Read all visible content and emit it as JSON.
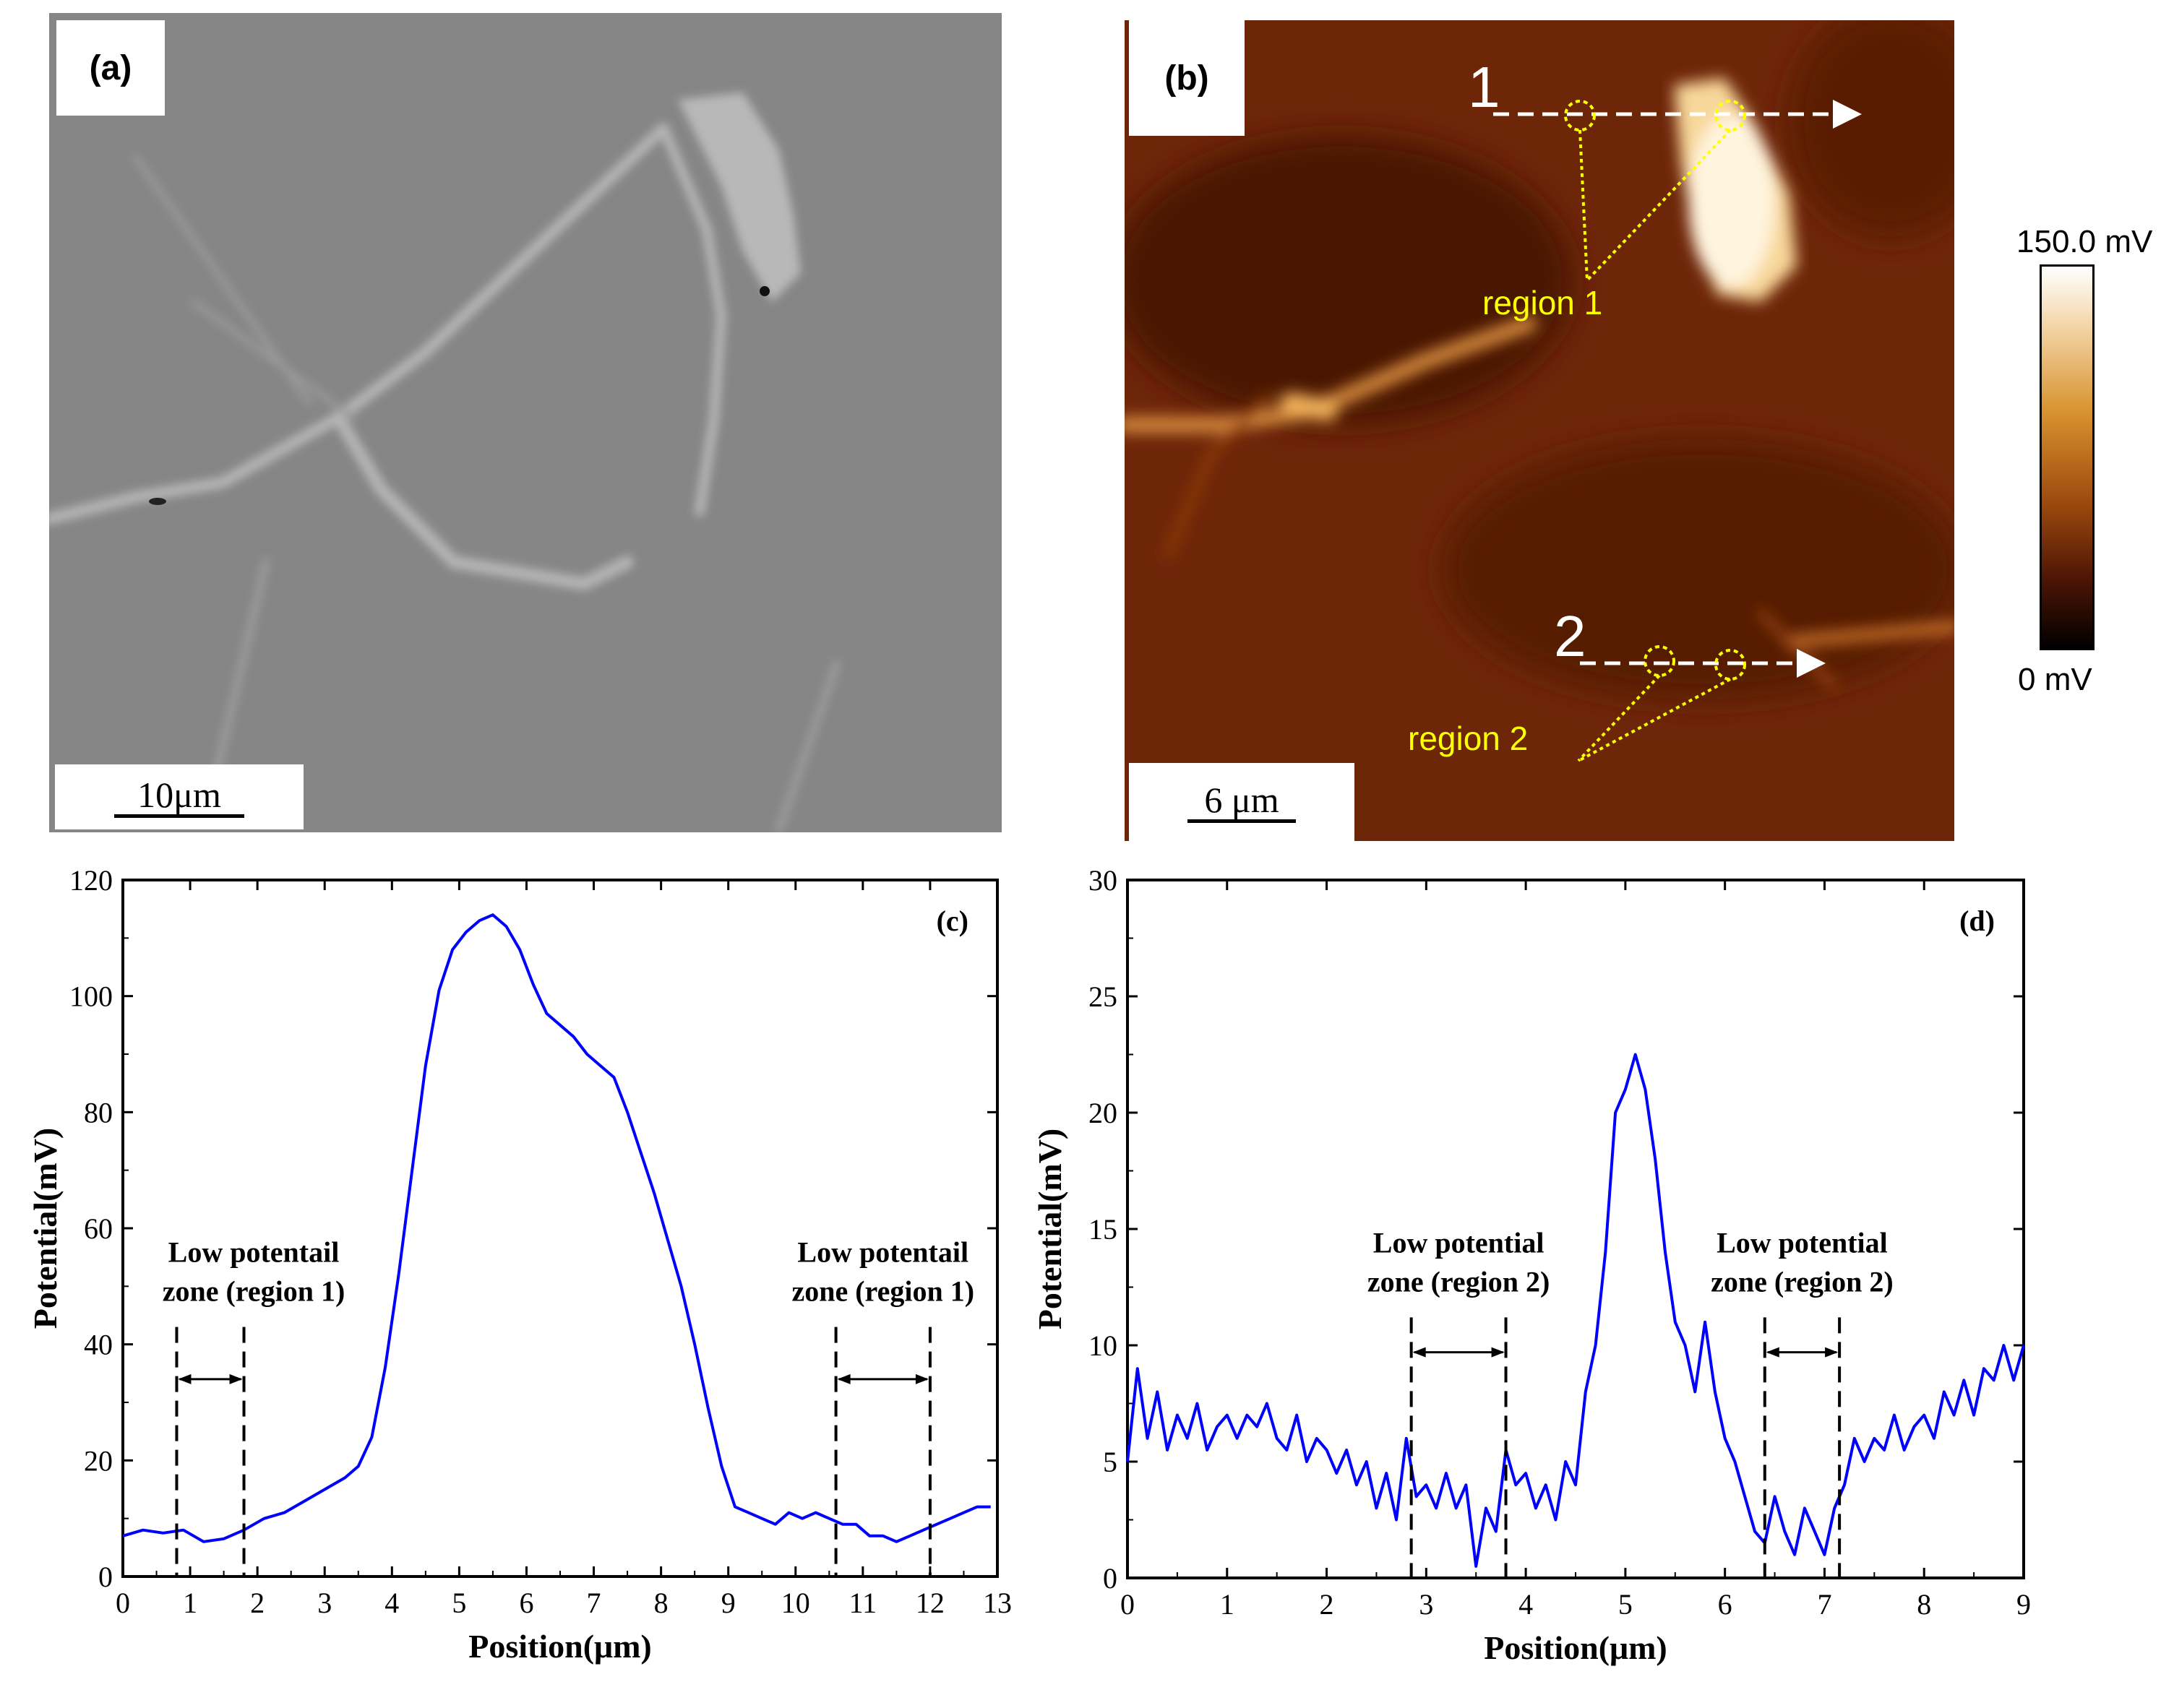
{
  "panel_a": {
    "label": "(a)",
    "scale_label": "10μm"
  },
  "panel_b": {
    "label": "(b)",
    "scale_label": "6 μm",
    "line1_label": "1",
    "line2_label": "2",
    "region1_text": "region 1",
    "region2_text": "region 2",
    "colorbar_max": "150.0 mV",
    "colorbar_min": "0 mV"
  },
  "colors": {
    "line": "#0000ff",
    "annotation": "#ffff00",
    "axis": "#000000"
  },
  "chart_data": [
    {
      "type": "line",
      "panel": "(c)",
      "xlabel": "Position(μm)",
      "ylabel": "Potential(mV)",
      "xlim": [
        0,
        13
      ],
      "ylim": [
        0,
        120
      ],
      "xticks": [
        "0",
        "1",
        "2",
        "3",
        "4",
        "5",
        "6",
        "7",
        "8",
        "9",
        "10",
        "11",
        "12",
        "13"
      ],
      "yticks": [
        "0",
        "20",
        "40",
        "60",
        "80",
        "100",
        "120"
      ],
      "series": [
        {
          "x": [
            0,
            0.3,
            0.6,
            0.9,
            1.2,
            1.5,
            1.8,
            2.1,
            2.4,
            2.7,
            3.0,
            3.3,
            3.5,
            3.7,
            3.9,
            4.1,
            4.3,
            4.5,
            4.7,
            4.9,
            5.1,
            5.3,
            5.5,
            5.7,
            5.9,
            6.1,
            6.3,
            6.5,
            6.7,
            6.9,
            7.1,
            7.3,
            7.5,
            7.7,
            7.9,
            8.1,
            8.3,
            8.5,
            8.7,
            8.9,
            9.1,
            9.3,
            9.5,
            9.7,
            9.9,
            10.1,
            10.3,
            10.5,
            10.7,
            10.9,
            11.1,
            11.3,
            11.5,
            11.7,
            11.9,
            12.1,
            12.3,
            12.5,
            12.7,
            12.9
          ],
          "y": [
            7,
            8,
            7.5,
            8,
            6,
            6.5,
            8,
            10,
            11,
            13,
            15,
            17,
            19,
            24,
            36,
            52,
            70,
            88,
            101,
            108,
            111,
            113,
            114,
            112,
            108,
            102,
            97,
            95,
            93,
            90,
            88,
            86,
            80,
            73,
            66,
            58,
            50,
            40,
            29,
            19,
            12,
            11,
            10,
            9,
            11,
            10,
            11,
            10,
            9,
            9,
            7,
            7,
            6,
            7,
            8,
            9,
            10,
            11,
            12,
            12
          ]
        }
      ],
      "annotations": {
        "left_text": [
          "Low potentail",
          "zone (region 1)"
        ],
        "right_text": [
          "Low potentail",
          "zone (region 1)"
        ],
        "left_zone": [
          0.8,
          1.8
        ],
        "right_zone": [
          10.6,
          12.0
        ],
        "zone_line_top": 43,
        "arrow_y": 34,
        "panel_tag": "(c)"
      }
    },
    {
      "type": "line",
      "panel": "(d)",
      "xlabel": "Position(μm)",
      "ylabel": "Potential(mV)",
      "xlim": [
        0,
        9
      ],
      "ylim": [
        0,
        30
      ],
      "xticks": [
        "0",
        "1",
        "2",
        "3",
        "4",
        "5",
        "6",
        "7",
        "8",
        "9"
      ],
      "yticks": [
        "0",
        "5",
        "10",
        "15",
        "20",
        "25",
        "30"
      ],
      "series": [
        {
          "x": [
            0,
            0.1,
            0.2,
            0.3,
            0.4,
            0.5,
            0.6,
            0.7,
            0.8,
            0.9,
            1.0,
            1.1,
            1.2,
            1.3,
            1.4,
            1.5,
            1.6,
            1.7,
            1.8,
            1.9,
            2.0,
            2.1,
            2.2,
            2.3,
            2.4,
            2.5,
            2.6,
            2.7,
            2.8,
            2.9,
            3.0,
            3.1,
            3.2,
            3.3,
            3.4,
            3.5,
            3.6,
            3.7,
            3.8,
            3.9,
            4.0,
            4.1,
            4.2,
            4.3,
            4.4,
            4.5,
            4.6,
            4.7,
            4.8,
            4.9,
            5.0,
            5.1,
            5.2,
            5.3,
            5.4,
            5.5,
            5.6,
            5.7,
            5.8,
            5.9,
            6.0,
            6.1,
            6.2,
            6.3,
            6.4,
            6.5,
            6.6,
            6.7,
            6.8,
            6.9,
            7.0,
            7.1,
            7.2,
            7.3,
            7.4,
            7.5,
            7.6,
            7.7,
            7.8,
            7.9,
            8.0,
            8.1,
            8.2,
            8.3,
            8.4,
            8.5,
            8.6,
            8.7,
            8.8,
            8.9,
            9.0
          ],
          "y": [
            5,
            9,
            6,
            8,
            5.5,
            7,
            6,
            7.5,
            5.5,
            6.5,
            7,
            6,
            7,
            6.5,
            7.5,
            6,
            5.5,
            7,
            5,
            6,
            5.5,
            4.5,
            5.5,
            4,
            5,
            3,
            4.5,
            2.5,
            6,
            3.5,
            4,
            3,
            4.5,
            3,
            4,
            0.5,
            3,
            2,
            5.5,
            4,
            4.5,
            3,
            4,
            2.5,
            5,
            4,
            8,
            10,
            14,
            20,
            21,
            22.5,
            21,
            18,
            14,
            11,
            10,
            8,
            11,
            8,
            6,
            5,
            3.5,
            2,
            1.5,
            3.5,
            2,
            1,
            3,
            2,
            1,
            3,
            4,
            6,
            5,
            6,
            5.5,
            7,
            5.5,
            6.5,
            7,
            6,
            8,
            7,
            8.5,
            7,
            9,
            8.5,
            10,
            8.5,
            10
          ]
        }
      ],
      "annotations": {
        "left_text": [
          "Low potential",
          "zone (region 2)"
        ],
        "right_text": [
          "Low potential",
          "zone (region 2)"
        ],
        "left_zone": [
          2.85,
          3.8
        ],
        "right_zone": [
          6.4,
          7.15
        ],
        "zone_line_top": 11.2,
        "arrow_y": 9.7,
        "panel_tag": "(d)"
      }
    }
  ]
}
